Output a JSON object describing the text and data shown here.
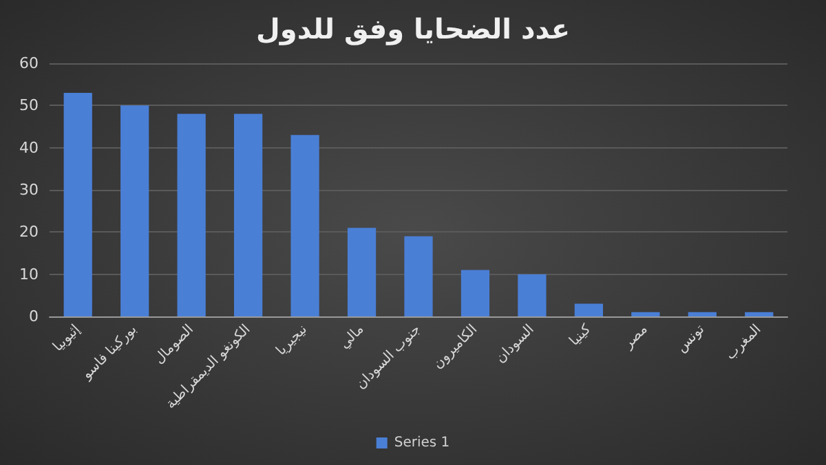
{
  "chart_data": {
    "type": "bar",
    "title": "عدد الضحايا وفق للدول",
    "categories": [
      "إثيوبيا",
      "بوركينا فاسو",
      "الصومال",
      "الكونغو الديمقراطية",
      "نيجيريا",
      "مالي",
      "جنوب السودان",
      "الكاميرون",
      "السودان",
      "كينيا",
      "مصر",
      "تونس",
      "المغرب"
    ],
    "series": [
      {
        "name": "Series 1",
        "color": "#4a7fd6",
        "values": [
          53,
          50,
          48,
          48,
          43,
          21,
          19,
          11,
          10,
          3,
          1,
          1,
          1
        ]
      }
    ],
    "ylim": [
      0,
      60
    ],
    "yticks": [
      0,
      10,
      20,
      30,
      40,
      50,
      60
    ],
    "grid": "y",
    "legend": "bottom"
  }
}
